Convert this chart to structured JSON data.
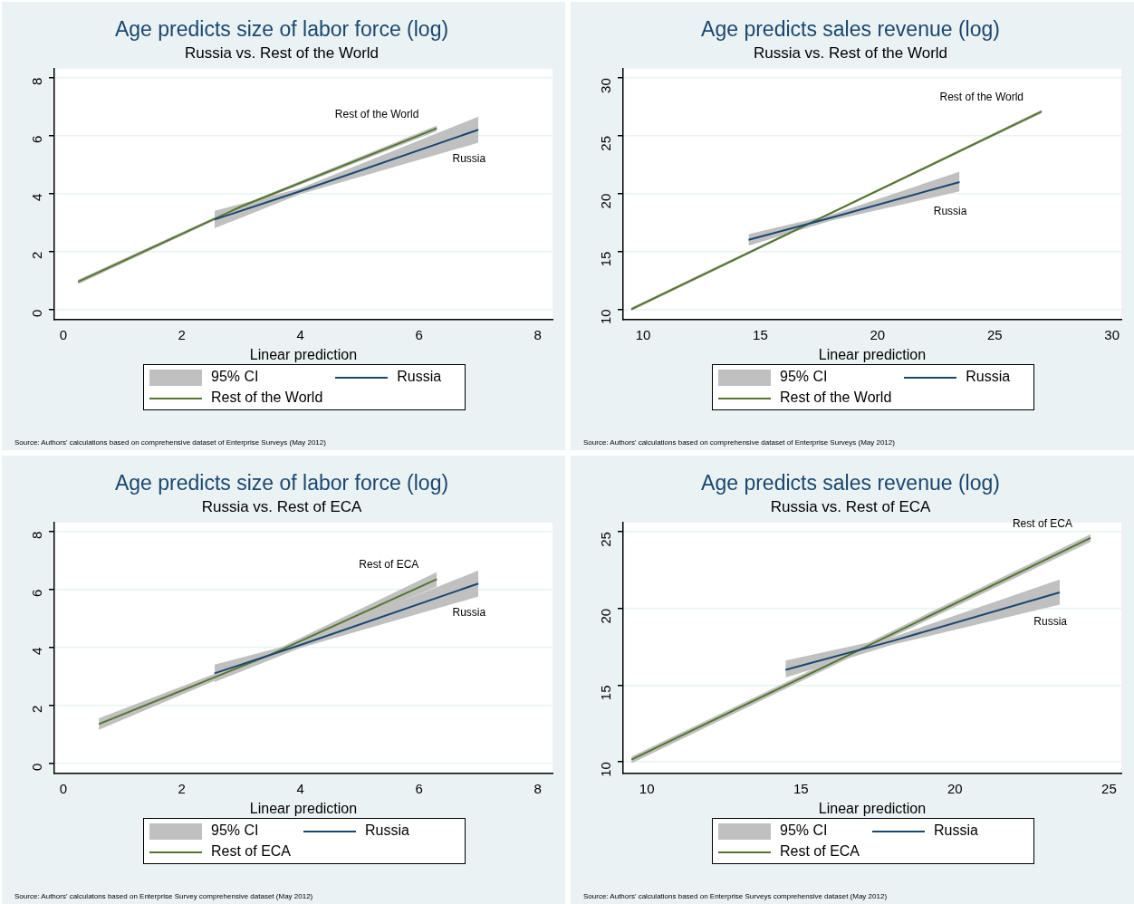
{
  "chart_data": [
    {
      "type": "line",
      "title": "Age predicts size of labor force (log)",
      "subtitle": "Russia vs. Rest of the World",
      "xlabel": "Linear prediction",
      "xlim": [
        -0.15,
        8.25
      ],
      "xticks": [
        0,
        2,
        4,
        6,
        8
      ],
      "ylim": [
        -0.35,
        8.3
      ],
      "yticks": [
        0,
        2,
        4,
        6,
        8
      ],
      "grid": "y",
      "legend": "bottom",
      "marker": "none",
      "line_style": "solid",
      "series": [
        {
          "name": "Russia",
          "color": "#1a476f",
          "x": [
            2.55,
            4,
            7.0
          ],
          "values": [
            3.1,
            4.08,
            6.2
          ],
          "lower": [
            2.8,
            3.98,
            5.75
          ],
          "upper": [
            3.4,
            4.18,
            6.65
          ]
        },
        {
          "name": "Rest of the World",
          "color": "#55752f",
          "x": [
            0.25,
            3,
            6.3
          ],
          "values": [
            0.95,
            3.55,
            6.25
          ],
          "lower": [
            0.87,
            3.5,
            6.15
          ],
          "upper": [
            1.03,
            3.6,
            6.35
          ]
        }
      ],
      "annotations": [
        "95% CI",
        "Source: Authors' calculations based on comprehensive dataset of Enterprise Surveys (May 2012)"
      ]
    },
    {
      "type": "line",
      "title": "Age predicts sales revenue (log)",
      "subtitle": "Russia vs. Rest of the World",
      "xlabel": "Linear prediction",
      "xlim": [
        9.15,
        30.4
      ],
      "xticks": [
        10,
        15,
        20,
        25,
        30
      ],
      "ylim": [
        9.1,
        30.8
      ],
      "yticks": [
        10,
        15,
        20,
        25,
        30
      ],
      "grid": "y",
      "legend": "bottom",
      "marker": "none",
      "line_style": "solid",
      "series": [
        {
          "name": "Russia",
          "color": "#1a476f",
          "x": [
            14.5,
            18,
            23.5
          ],
          "values": [
            16.0,
            17.9,
            21.0
          ],
          "lower": [
            15.5,
            17.65,
            20.2
          ],
          "upper": [
            16.5,
            18.15,
            21.9
          ]
        },
        {
          "name": "Rest of the World",
          "color": "#55752f",
          "x": [
            9.5,
            18,
            27
          ],
          "values": [
            10.0,
            18.3,
            27.1
          ],
          "lower": [
            9.85,
            18.2,
            26.95
          ],
          "upper": [
            10.15,
            18.4,
            27.25
          ]
        }
      ],
      "annotations": [
        "95% CI",
        "Source: Authors' calculations based on comprehensive dataset of Enterprise Surveys (May 2012)"
      ]
    },
    {
      "type": "line",
      "title": "Age predicts size of labor force (log)",
      "subtitle": "Russia vs. Rest of ECA",
      "xlabel": "Linear prediction",
      "xlim": [
        -0.15,
        8.25
      ],
      "xticks": [
        0,
        2,
        4,
        6,
        8
      ],
      "ylim": [
        -0.35,
        8.3
      ],
      "yticks": [
        0,
        2,
        4,
        6,
        8
      ],
      "grid": "y",
      "legend": "bottom",
      "marker": "none",
      "line_style": "solid",
      "series": [
        {
          "name": "Russia",
          "color": "#1a476f",
          "x": [
            2.55,
            4,
            7.0
          ],
          "values": [
            3.1,
            4.08,
            6.2
          ],
          "lower": [
            2.8,
            3.98,
            5.75
          ],
          "upper": [
            3.4,
            4.18,
            6.65
          ]
        },
        {
          "name": "Rest of ECA",
          "color": "#55752f",
          "x": [
            0.6,
            3.5,
            6.3
          ],
          "values": [
            1.35,
            3.75,
            6.35
          ],
          "lower": [
            1.15,
            3.67,
            6.1
          ],
          "upper": [
            1.55,
            3.83,
            6.6
          ]
        }
      ],
      "annotations": [
        "95% CI",
        "Source: Authors' calculatons based on Enterprise Survey comprehensive dataset (May 2012)"
      ]
    },
    {
      "type": "line",
      "title": "Age predicts sales revenue (log)",
      "subtitle": "Russia vs. Rest of ECA",
      "xlabel": "Linear prediction",
      "xlim": [
        9.23,
        25.4
      ],
      "xticks": [
        10,
        15,
        20,
        25
      ],
      "ylim": [
        9.25,
        25.6
      ],
      "yticks": [
        10,
        15,
        20,
        25
      ],
      "grid": "y",
      "legend": "bottom",
      "marker": "none",
      "line_style": "solid",
      "series": [
        {
          "name": "Russia",
          "color": "#1a476f",
          "x": [
            14.5,
            18,
            23.4
          ],
          "values": [
            16.0,
            17.9,
            21.05
          ],
          "lower": [
            15.5,
            17.65,
            20.25
          ],
          "upper": [
            16.6,
            18.15,
            21.9
          ]
        },
        {
          "name": "Rest of ECA",
          "color": "#55752f",
          "x": [
            9.5,
            17,
            24.4
          ],
          "values": [
            10.15,
            17.4,
            24.6
          ],
          "lower": [
            9.9,
            17.2,
            24.35
          ],
          "upper": [
            10.35,
            17.6,
            24.85
          ]
        }
      ],
      "annotations": [
        "95% CI",
        "Source: Authors' calculations based on Enterprise Surveys comprehensive dataset (May 2012)"
      ]
    }
  ]
}
